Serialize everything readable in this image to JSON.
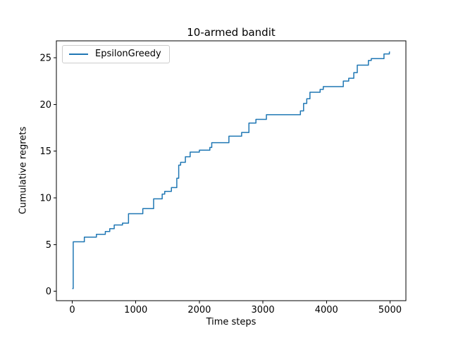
{
  "figure": {
    "title": "10-armed bandit",
    "xlabel": "Time steps",
    "ylabel": "Cumulative regrets"
  },
  "legend": {
    "entries": [
      {
        "label": "EpsilonGreedy",
        "color": "#1f77b4"
      }
    ]
  },
  "colors": {
    "background": "#ffffff",
    "spine": "#000000",
    "text": "#000000",
    "legend_border": "#cccccc",
    "series_blue": "#1f77b4"
  },
  "chart_data": {
    "type": "line",
    "title": "10-armed bandit",
    "xlabel": "Time steps",
    "ylabel": "Cumulative regrets",
    "grid": false,
    "legend_position": "upper left",
    "step_mode": "post",
    "xlim": [
      -250,
      5250
    ],
    "ylim": [
      -1.0,
      26.8
    ],
    "xticks": [
      0,
      1000,
      2000,
      3000,
      4000,
      5000
    ],
    "yticks": [
      0,
      5,
      10,
      15,
      20,
      25
    ],
    "series": [
      {
        "name": "EpsilonGreedy",
        "color": "#1f77b4",
        "points": [
          [
            0,
            0.3
          ],
          [
            15,
            5.3
          ],
          [
            190,
            5.8
          ],
          [
            380,
            6.1
          ],
          [
            520,
            6.4
          ],
          [
            590,
            6.7
          ],
          [
            660,
            7.1
          ],
          [
            790,
            7.3
          ],
          [
            885,
            8.3
          ],
          [
            1110,
            8.85
          ],
          [
            1280,
            9.9
          ],
          [
            1415,
            10.4
          ],
          [
            1455,
            10.7
          ],
          [
            1560,
            11.1
          ],
          [
            1645,
            12.1
          ],
          [
            1675,
            13.5
          ],
          [
            1705,
            13.8
          ],
          [
            1780,
            14.4
          ],
          [
            1855,
            14.9
          ],
          [
            2000,
            15.1
          ],
          [
            2165,
            15.4
          ],
          [
            2195,
            15.9
          ],
          [
            2465,
            16.6
          ],
          [
            2665,
            17.0
          ],
          [
            2780,
            18.0
          ],
          [
            2890,
            18.4
          ],
          [
            3055,
            18.9
          ],
          [
            3590,
            19.3
          ],
          [
            3640,
            20.1
          ],
          [
            3690,
            20.6
          ],
          [
            3740,
            21.3
          ],
          [
            3900,
            21.6
          ],
          [
            3950,
            21.9
          ],
          [
            4265,
            22.5
          ],
          [
            4350,
            22.8
          ],
          [
            4430,
            23.4
          ],
          [
            4485,
            24.2
          ],
          [
            4660,
            24.7
          ],
          [
            4705,
            24.9
          ],
          [
            4905,
            25.4
          ],
          [
            4990,
            25.6
          ],
          [
            5000,
            25.6
          ]
        ]
      }
    ]
  }
}
